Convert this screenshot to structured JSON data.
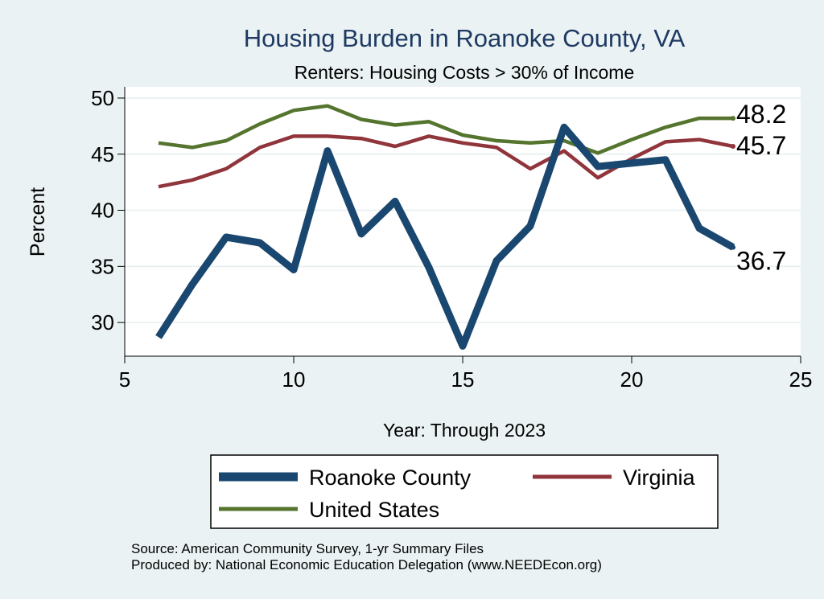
{
  "chart_data": {
    "type": "line",
    "title": "Housing Burden in Roanoke County, VA",
    "subtitle": "Renters: Housing Costs > 30% of Income",
    "xlabel": "Year: Through 2023",
    "ylabel": "Percent",
    "xlim": [
      5,
      25
    ],
    "ylim": [
      27,
      51
    ],
    "x_ticks": [
      5,
      10,
      15,
      20,
      25
    ],
    "y_ticks": [
      30,
      35,
      40,
      45,
      50
    ],
    "grid": true,
    "legend_position": "bottom",
    "x": [
      6,
      7,
      8,
      9,
      10,
      11,
      12,
      13,
      14,
      15,
      16,
      17,
      18,
      19,
      20,
      21,
      22,
      23
    ],
    "series": [
      {
        "name": "Roanoke County",
        "color": "#1a476f",
        "values": [
          28.7,
          33.4,
          37.6,
          37.1,
          34.7,
          45.3,
          37.9,
          40.8,
          34.9,
          27.9,
          35.5,
          38.6,
          47.4,
          43.9,
          44.2,
          44.5,
          38.4,
          36.7
        ],
        "end_label": "36.7"
      },
      {
        "name": "Virginia",
        "color": "#90353b",
        "values": [
          42.1,
          42.7,
          43.7,
          45.6,
          46.6,
          46.6,
          46.4,
          45.7,
          46.6,
          46.0,
          45.6,
          43.7,
          45.3,
          42.9,
          44.6,
          46.1,
          46.3,
          45.7
        ],
        "end_label": "45.7"
      },
      {
        "name": "United States",
        "color": "#55752f",
        "values": [
          46.0,
          45.6,
          46.2,
          47.7,
          48.9,
          49.3,
          48.1,
          47.6,
          47.9,
          46.7,
          46.2,
          46.0,
          46.2,
          45.1,
          46.3,
          47.4,
          48.2,
          48.2
        ],
        "end_label": "48.2"
      }
    ]
  },
  "legend": {
    "items": [
      "Roanoke County",
      "Virginia",
      "United States"
    ]
  },
  "notes": {
    "source": "Source: American Community Survey, 1-yr Summary Files",
    "produced": "Produced by: National Economic Education Delegation (www.NEEDEcon.org)"
  }
}
